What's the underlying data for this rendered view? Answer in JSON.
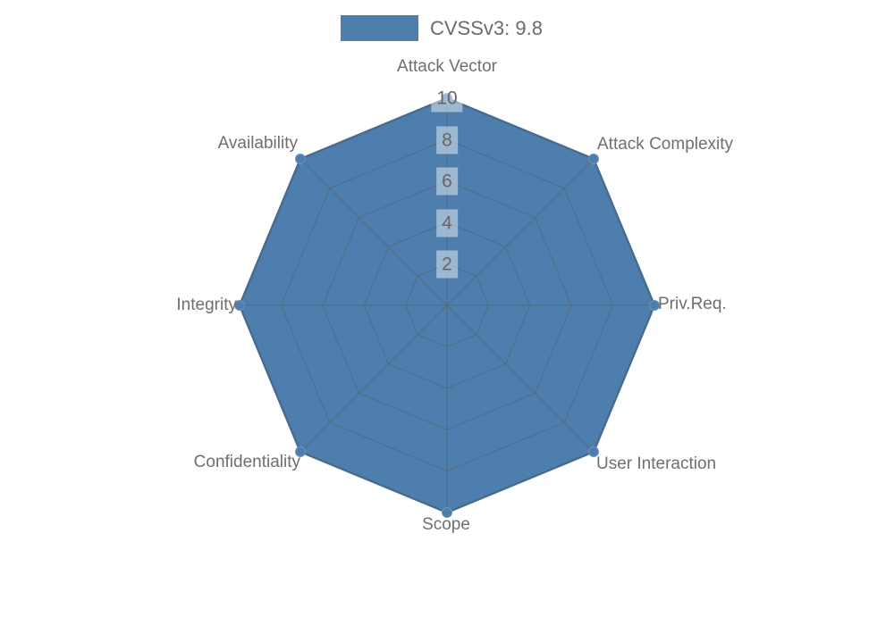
{
  "chart_data": {
    "type": "radar",
    "title": "",
    "legend": {
      "position": "top-center",
      "entries": [
        {
          "label": "CVSSv3: 9.8",
          "color": "#4d7eae"
        }
      ]
    },
    "categories": [
      "Attack Vector",
      "Attack Complexity",
      "Priv.Req.",
      "User Interaction",
      "Scope",
      "Confidentiality",
      "Integrity",
      "Availability"
    ],
    "series": [
      {
        "name": "CVSSv3: 9.8",
        "values": [
          10,
          10,
          10,
          10,
          10,
          10,
          10,
          10
        ]
      }
    ],
    "radial_axis": {
      "range": [
        0,
        10
      ],
      "ticks": [
        2,
        4,
        6,
        8,
        10
      ]
    },
    "grid": true,
    "layout_hints": {
      "start_axis": "top",
      "direction": "clockwise",
      "grid_shape": "polygon"
    },
    "colors": {
      "series_fill": "#4d7eae",
      "series_line": "#44719f",
      "marker": "#4d7eae",
      "grid_line": "rgba(90,90,90,0.45)",
      "label_text": "#6f6f6f",
      "tick_text": "#666666",
      "tick_box_bg": "rgba(255,255,255,0.45)"
    }
  }
}
